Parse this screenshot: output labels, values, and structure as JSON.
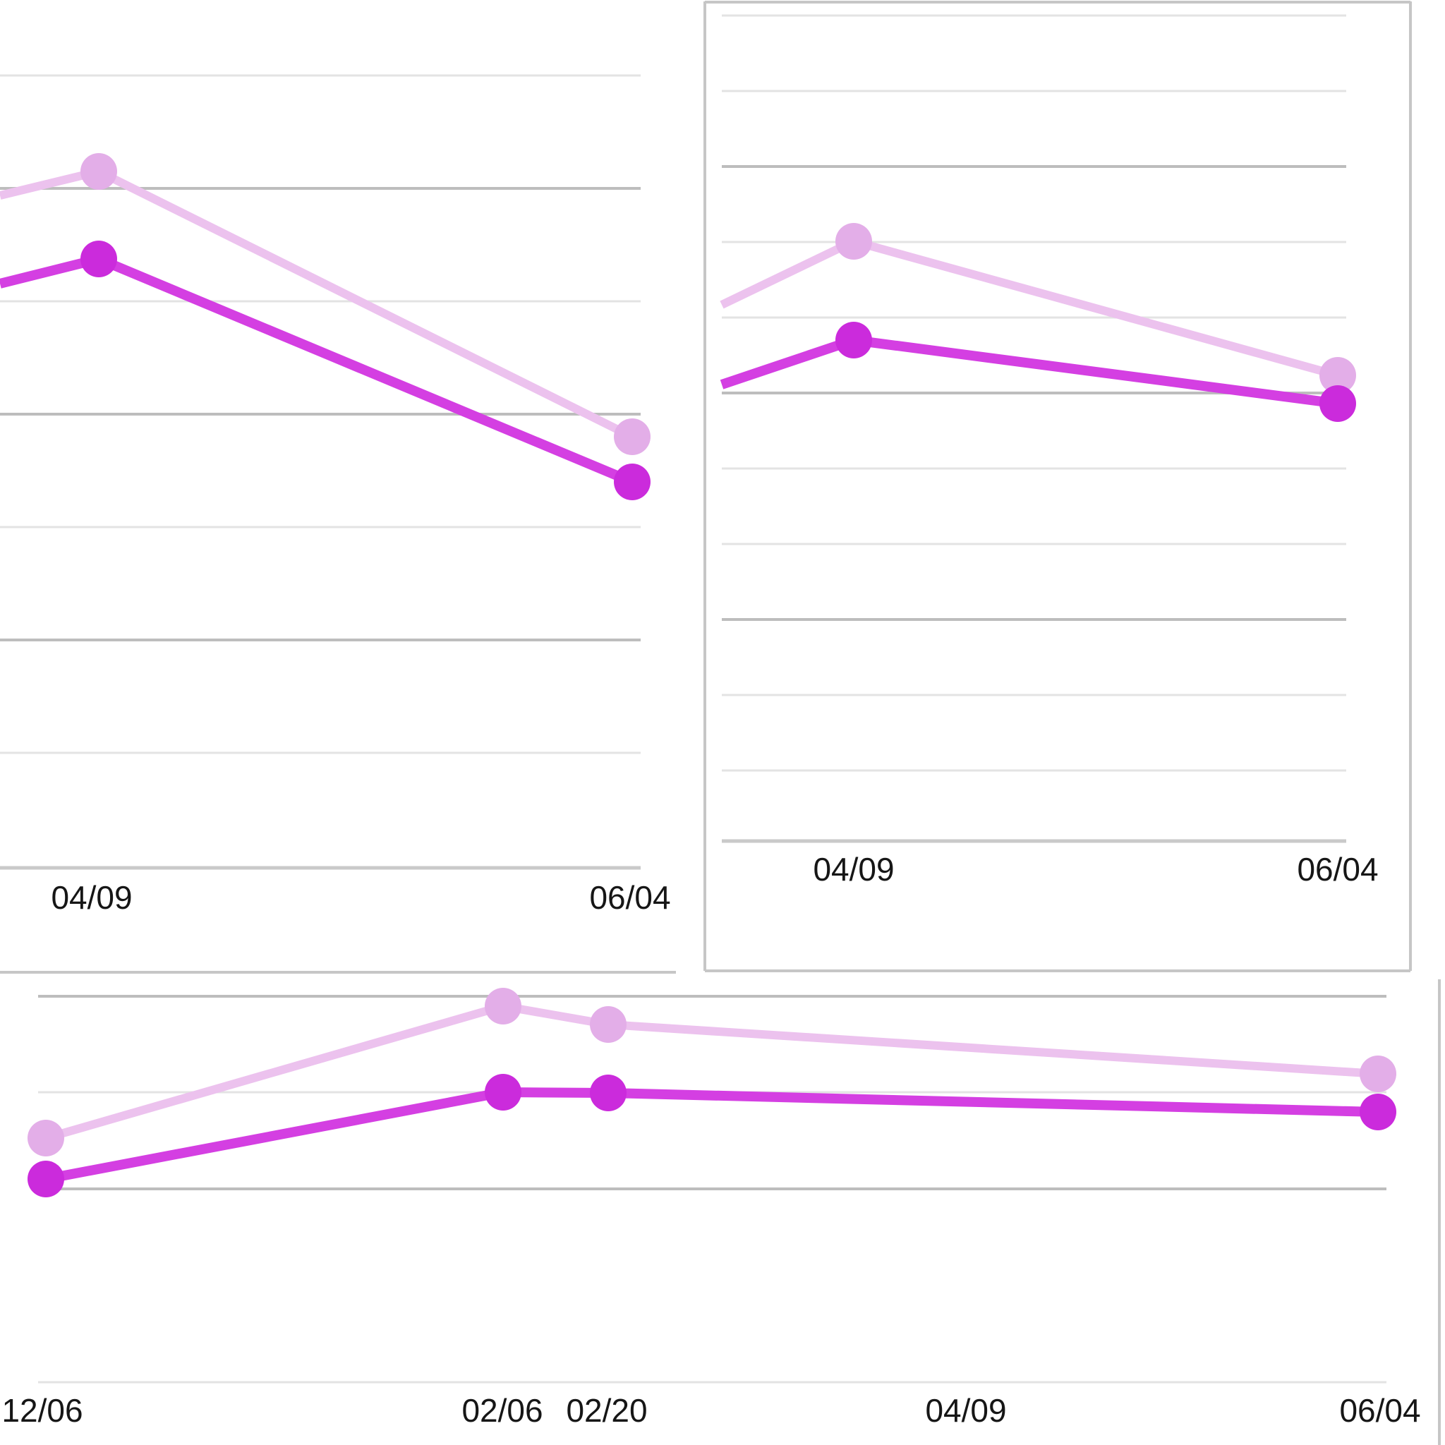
{
  "page": {
    "description": "Cropped dashboard screenshot showing three line-chart panels (two top cards, one wide bottom card), each with a light-pink series and a magenta series over date x-axes",
    "background": "#ffffff"
  },
  "colors": {
    "series_light_line": "#ecc2ee",
    "series_light_dot": "#e3aee8",
    "series_dark_line": "#d43fe2",
    "series_dark_dot": "#cb2bdc",
    "grid_minor": "#e3e3e3",
    "grid_major": "#bdbdbd",
    "axis_line": "#c9c9c9",
    "card_border": "#c6c6c6",
    "tick_text": "#161616"
  },
  "stroke_widths": {
    "grid_minor": 3,
    "grid_major": 4,
    "axis_line": 5,
    "card_border": 4,
    "series_light": 12,
    "series_dark": 14,
    "dot_radius": 26
  },
  "chart_data": [
    {
      "id": "chart-top-left",
      "type": "line",
      "units": "px",
      "note": "card cut off at left and top edges of screenshot; no y-axis value labels visible",
      "legend": "none",
      "grid": "horizontal only",
      "lines": [
        {
          "kind": "minor",
          "x1": 0,
          "y1": 107,
          "x2": 908,
          "y2": 107
        },
        {
          "kind": "major",
          "x1": 0,
          "y1": 267,
          "x2": 908,
          "y2": 267
        },
        {
          "kind": "minor",
          "x1": 0,
          "y1": 427,
          "x2": 908,
          "y2": 427
        },
        {
          "kind": "major",
          "x1": 0,
          "y1": 587,
          "x2": 908,
          "y2": 587
        },
        {
          "kind": "minor",
          "x1": 0,
          "y1": 747,
          "x2": 908,
          "y2": 747
        },
        {
          "kind": "major",
          "x1": 0,
          "y1": 907,
          "x2": 908,
          "y2": 907
        },
        {
          "kind": "minor",
          "x1": 0,
          "y1": 1067,
          "x2": 908,
          "y2": 1067
        },
        {
          "kind": "axis",
          "x1": 0,
          "y1": 1230,
          "x2": 908,
          "y2": 1230
        },
        {
          "kind": "border",
          "x1": 0,
          "y1": 1378,
          "x2": 958,
          "y2": 1378
        }
      ],
      "series": [
        {
          "name": "light-pink-series",
          "points": [
            [
              0,
              277
            ],
            [
              140,
              243
            ],
            [
              896,
              619
            ]
          ],
          "dot_indices": [
            1,
            2
          ]
        },
        {
          "name": "magenta-series",
          "points": [
            [
              0,
              402
            ],
            [
              140,
              367
            ],
            [
              896,
              683
            ]
          ],
          "dot_indices": [
            1,
            2
          ]
        }
      ],
      "x_ticks": [
        {
          "label": "04/09",
          "x": 130,
          "y": 1288
        },
        {
          "label": "06/04",
          "x": 893,
          "y": 1288
        }
      ]
    },
    {
      "id": "chart-top-right",
      "type": "line",
      "units": "px",
      "note": "bordered card fully visible horizontally; top border near screenshot top edge",
      "legend": "none",
      "grid": "horizontal only",
      "lines": [
        {
          "kind": "border",
          "x1": 999,
          "y1": 2,
          "x2": 999,
          "y2": 1376
        },
        {
          "kind": "border",
          "x1": 999,
          "y1": 3,
          "x2": 1999,
          "y2": 3
        },
        {
          "kind": "border",
          "x1": 1999,
          "y1": 2,
          "x2": 1999,
          "y2": 1376
        },
        {
          "kind": "border",
          "x1": 999,
          "y1": 1376,
          "x2": 1999,
          "y2": 1376
        },
        {
          "kind": "minor",
          "x1": 1023,
          "y1": 22,
          "x2": 1908,
          "y2": 22
        },
        {
          "kind": "minor",
          "x1": 1023,
          "y1": 129,
          "x2": 1908,
          "y2": 129
        },
        {
          "kind": "major",
          "x1": 1023,
          "y1": 236,
          "x2": 1908,
          "y2": 236
        },
        {
          "kind": "minor",
          "x1": 1023,
          "y1": 343,
          "x2": 1908,
          "y2": 343
        },
        {
          "kind": "minor",
          "x1": 1023,
          "y1": 450,
          "x2": 1908,
          "y2": 450
        },
        {
          "kind": "major",
          "x1": 1023,
          "y1": 557,
          "x2": 1908,
          "y2": 557
        },
        {
          "kind": "minor",
          "x1": 1023,
          "y1": 664,
          "x2": 1908,
          "y2": 664
        },
        {
          "kind": "minor",
          "x1": 1023,
          "y1": 771,
          "x2": 1908,
          "y2": 771
        },
        {
          "kind": "major",
          "x1": 1023,
          "y1": 878,
          "x2": 1908,
          "y2": 878
        },
        {
          "kind": "minor",
          "x1": 1023,
          "y1": 985,
          "x2": 1908,
          "y2": 985
        },
        {
          "kind": "minor",
          "x1": 1023,
          "y1": 1092,
          "x2": 1908,
          "y2": 1092
        },
        {
          "kind": "axis",
          "x1": 1023,
          "y1": 1192,
          "x2": 1908,
          "y2": 1192
        }
      ],
      "series": [
        {
          "name": "light-pink-series",
          "points": [
            [
              1023,
              432
            ],
            [
              1210,
              342
            ],
            [
              1896,
              532
            ]
          ],
          "dot_indices": [
            1,
            2
          ]
        },
        {
          "name": "magenta-series",
          "points": [
            [
              1023,
              545
            ],
            [
              1210,
              482
            ],
            [
              1896,
              572
            ]
          ],
          "dot_indices": [
            1,
            2
          ]
        }
      ],
      "x_ticks": [
        {
          "label": "04/09",
          "x": 1210,
          "y": 1248
        },
        {
          "label": "06/04",
          "x": 1896,
          "y": 1248
        }
      ]
    },
    {
      "id": "chart-bottom",
      "type": "line",
      "units": "px",
      "note": "wide card cut off at bottom, left and right; data points at 12/06, 02/06, 02/20 and 06/04; no marker at 04/09",
      "legend": "none",
      "grid": "horizontal only",
      "lines": [
        {
          "kind": "major",
          "x1": 54,
          "y1": 1412,
          "x2": 1965,
          "y2": 1412
        },
        {
          "kind": "minor",
          "x1": 54,
          "y1": 1548,
          "x2": 1965,
          "y2": 1548
        },
        {
          "kind": "major",
          "x1": 54,
          "y1": 1685,
          "x2": 1965,
          "y2": 1685
        },
        {
          "kind": "minor",
          "x1": 54,
          "y1": 1959,
          "x2": 1965,
          "y2": 1959
        },
        {
          "kind": "border",
          "x1": 2040,
          "y1": 1388,
          "x2": 2040,
          "y2": 2048
        }
      ],
      "series": [
        {
          "name": "light-pink-series",
          "points": [
            [
              65,
              1613
            ],
            [
              713,
              1426
            ],
            [
              862,
              1452
            ],
            [
              1953,
              1522
            ]
          ],
          "dot_indices": [
            0,
            1,
            2,
            3
          ]
        },
        {
          "name": "magenta-series",
          "points": [
            [
              65,
              1671
            ],
            [
              713,
              1548
            ],
            [
              862,
              1549
            ],
            [
              1953,
              1576
            ]
          ],
          "dot_indices": [
            0,
            1,
            2,
            3
          ]
        }
      ],
      "x_ticks": [
        {
          "label": "12/06",
          "x": 60,
          "y": 2015
        },
        {
          "label": "02/06",
          "x": 712,
          "y": 2015
        },
        {
          "label": "02/20",
          "x": 860,
          "y": 2015
        },
        {
          "label": "04/09",
          "x": 1369,
          "y": 2015
        },
        {
          "label": "06/04",
          "x": 1956,
          "y": 2015
        }
      ]
    }
  ]
}
